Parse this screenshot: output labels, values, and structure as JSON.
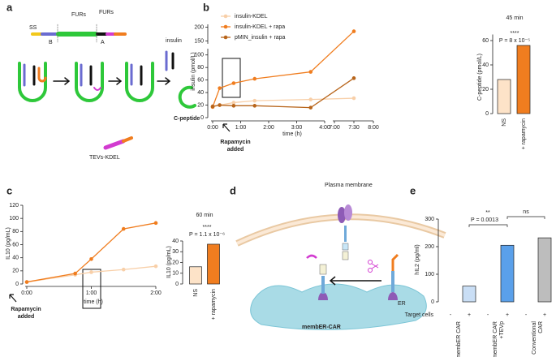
{
  "panel_labels": [
    "a",
    "b",
    "c",
    "d",
    "e"
  ],
  "diagram_a": {
    "ss": "SS",
    "furs_1": "FURs",
    "furs_2": "FURs",
    "b": "B",
    "a": "A",
    "insulin": "insulin",
    "c_peptide": "C-peptide",
    "tevs": "TEVs-KDEL"
  },
  "diagram_d": {
    "plasma_membrane": "Plasma membrane",
    "er": "ER",
    "receptor": "membER-CAR"
  },
  "chart_data": [
    {
      "type": "line",
      "x_label": "time (h)",
      "y_label": "insulin (pmol/L)",
      "annotation": [
        "Rapamycin",
        "added"
      ],
      "x": [
        0,
        0.25,
        0.75,
        1.5,
        3.5,
        7.5
      ],
      "xlim": [
        0,
        8
      ],
      "xbreak": [
        4,
        7
      ],
      "xticks": [
        {
          "value": 0,
          "label": "0:00"
        },
        {
          "value": 1,
          "label": "1:00"
        },
        {
          "value": 2,
          "label": "2:00"
        },
        {
          "value": 3,
          "label": "3:00"
        },
        {
          "value": 4,
          "label": "4:00"
        },
        {
          "value": 7,
          "label": "7:00"
        },
        {
          "value": 7.5,
          "label": "7:30"
        },
        {
          "value": 8,
          "label": "8:00"
        }
      ],
      "ylim": [
        0,
        210
      ],
      "ybreak": [
        110,
        140
      ],
      "yticks": [
        0,
        20,
        40,
        60,
        80,
        100,
        150,
        200
      ],
      "series": [
        {
          "name": "insulin-KDEL",
          "color": "#f8cfa8",
          "values": [
            17,
            20,
            24,
            27,
            29,
            31
          ]
        },
        {
          "name": "insulin-KDEL + rapa",
          "color": "#f07d1f",
          "values": [
            17,
            47,
            55,
            62,
            73,
            185
          ]
        },
        {
          "name": "pMIN_insulin + rapa",
          "color": "#b8651b",
          "values": [
            18,
            20,
            19,
            19,
            16,
            63
          ]
        }
      ]
    },
    {
      "type": "bar",
      "title": "45 min",
      "y_label": "C-peptide (pmol/L)",
      "categories": [
        "NS",
        "+ rapamycin"
      ],
      "values": [
        28,
        56
      ],
      "colors": [
        "#fde3c8",
        "#f07d1f"
      ],
      "ylim": [
        0,
        65
      ],
      "yticks": [
        0,
        20,
        40,
        60
      ],
      "annotations": [
        "****",
        "P = 8 x 10⁻⁵"
      ]
    },
    {
      "type": "line",
      "x_label": "time (h)",
      "y_label": "IL10 (pg/mL)",
      "annotation": [
        "Rapamycin",
        "added"
      ],
      "x": [
        0,
        0.75,
        1,
        1.5,
        2
      ],
      "xlim": [
        0,
        2
      ],
      "xticks": [
        {
          "value": 0,
          "label": "0:00"
        },
        {
          "value": 1,
          "label": "1:00"
        },
        {
          "value": 2,
          "label": "2:00"
        }
      ],
      "ylim": [
        0,
        120
      ],
      "yticks": [
        0,
        20,
        40,
        60,
        80,
        100,
        120
      ],
      "series": [
        {
          "color": "#f8cfa8",
          "values": [
            3,
            14,
            18,
            22,
            27
          ]
        },
        {
          "color": "#f07d1f",
          "values": [
            3,
            16,
            38,
            84,
            93
          ]
        }
      ]
    },
    {
      "type": "bar",
      "title": "60 min",
      "y_label": "IL10 (pg/mL)",
      "categories": [
        "NS",
        "+ rapamycin"
      ],
      "values": [
        16,
        37
      ],
      "colors": [
        "#fde3c8",
        "#f07d1f"
      ],
      "ylim": [
        0,
        40
      ],
      "yticks": [
        0,
        10,
        20,
        30,
        40
      ],
      "annotations": [
        "****",
        "P = 1.1 x 10⁻⁶"
      ]
    },
    {
      "type": "bar",
      "y_label": "hIL2 (pg/ml)",
      "row_label": "Target cells",
      "categories": [
        "-",
        "+",
        "-",
        "+",
        "-",
        "+"
      ],
      "values": [
        0,
        57,
        0,
        205,
        0,
        232
      ],
      "colors": [
        "#c9def5",
        "#c9def5",
        "#5aa0ea",
        "#5aa0ea",
        "#bdbdbd",
        "#bdbdbd"
      ],
      "groups": [
        [
          "membER CAR"
        ],
        [
          "membER CAR",
          "+TEVp"
        ],
        [
          "Conventional",
          "CAR"
        ]
      ],
      "ylim": [
        0,
        300
      ],
      "yticks": [
        0,
        100,
        200,
        300
      ],
      "annotations": [
        "P = 0.0013",
        "**",
        "ns"
      ]
    }
  ]
}
